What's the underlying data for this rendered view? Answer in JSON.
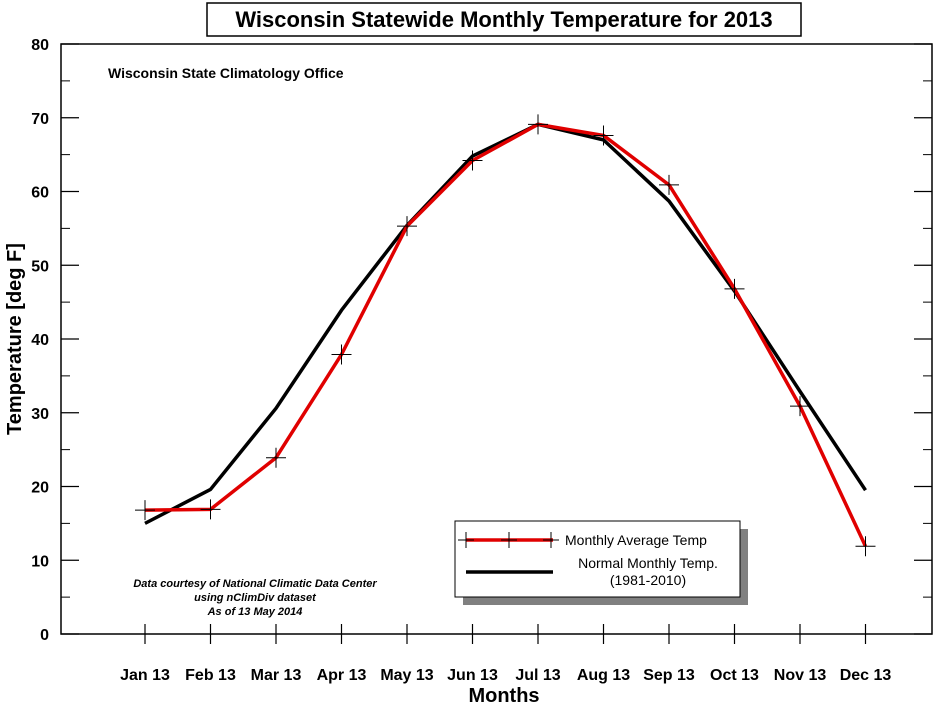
{
  "chart_data": {
    "type": "line",
    "title": "Wisconsin Statewide Monthly Temperature for 2013",
    "subtitle": "Wisconsin State Climatology Office",
    "xlabel": "Months",
    "ylabel": "Temperature [deg F]",
    "ylim": [
      0,
      80
    ],
    "yticks": [
      0,
      10,
      20,
      30,
      40,
      50,
      60,
      70,
      80
    ],
    "categories": [
      "Jan 13",
      "Feb 13",
      "Mar 13",
      "Apr 13",
      "May 13",
      "Jun 13",
      "Jul 13",
      "Aug 13",
      "Sep 13",
      "Oct 13",
      "Nov 13",
      "Dec 13"
    ],
    "series": [
      {
        "name": "Monthly Average Temp",
        "color": "#e00000",
        "marker": "plus",
        "values": [
          16.8,
          16.9,
          23.9,
          37.9,
          55.3,
          64.2,
          69.1,
          67.6,
          60.9,
          46.8,
          30.9,
          11.9
        ]
      },
      {
        "name": "Normal Monthly Temp.",
        "name_line2": "(1981-2010)",
        "color": "#000000",
        "marker": "none",
        "values": [
          15.0,
          19.6,
          30.6,
          43.9,
          55.4,
          64.8,
          69.1,
          67.0,
          58.7,
          46.5,
          32.9,
          19.5
        ]
      }
    ],
    "legend_position": "bottom-right",
    "grid": false,
    "notes": [
      "Data courtesy of National Climatic Data Center",
      "using nClimDiv dataset",
      "As of 13 May 2014"
    ]
  }
}
